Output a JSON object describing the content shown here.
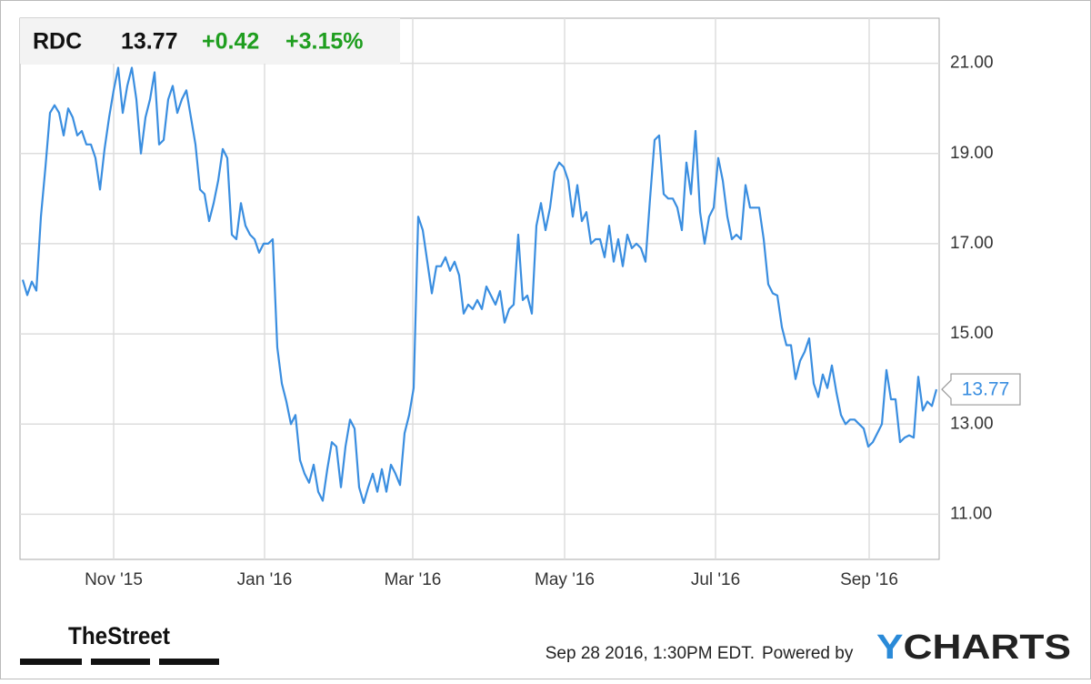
{
  "header": {
    "ticker": "RDC",
    "price": "13.77",
    "change": "+0.42",
    "change_pct": "+3.15%"
  },
  "footer": {
    "brand": "TheStreet",
    "timestamp": "Sep 28 2016, 1:30PM EDT.",
    "powered": "Powered by",
    "logo": "YCHARTS"
  },
  "chart_data": {
    "type": "line",
    "series": [
      {
        "name": "RDC",
        "color": "#3a8ee0",
        "values": [
          16.2,
          15.86,
          16.16,
          15.96,
          17.6,
          18.7,
          19.9,
          20.07,
          19.9,
          19.4,
          20.0,
          19.8,
          19.4,
          19.5,
          19.2,
          19.2,
          18.9,
          18.2,
          19.1,
          19.8,
          20.4,
          20.9,
          19.9,
          20.5,
          20.9,
          20.2,
          19.0,
          19.8,
          20.2,
          20.8,
          19.2,
          19.3,
          20.2,
          20.5,
          19.9,
          20.2,
          20.4,
          19.8,
          19.2,
          18.2,
          18.1,
          17.5,
          17.9,
          18.4,
          19.1,
          18.9,
          17.2,
          17.1,
          17.9,
          17.4,
          17.2,
          17.1,
          16.8,
          17.0,
          17.0,
          17.1,
          14.7,
          13.9,
          13.5,
          13.0,
          13.2,
          12.2,
          11.9,
          11.7,
          12.1,
          11.5,
          11.3,
          12.0,
          12.6,
          12.5,
          11.6,
          12.5,
          13.1,
          12.9,
          11.6,
          11.25,
          11.6,
          11.9,
          11.5,
          12.0,
          11.5,
          12.1,
          11.9,
          11.65,
          12.8,
          13.2,
          13.8,
          17.6,
          17.3,
          16.6,
          15.9,
          16.5,
          16.5,
          16.7,
          16.4,
          16.6,
          16.3,
          15.45,
          15.65,
          15.55,
          15.75,
          15.55,
          16.05,
          15.85,
          15.65,
          15.95,
          15.25,
          15.55,
          15.65,
          17.2,
          15.75,
          15.85,
          15.45,
          17.4,
          17.9,
          17.3,
          17.8,
          18.6,
          18.8,
          18.7,
          18.4,
          17.6,
          18.3,
          17.5,
          17.7,
          17.0,
          17.1,
          17.1,
          16.7,
          17.4,
          16.6,
          17.1,
          16.5,
          17.2,
          16.9,
          17.0,
          16.9,
          16.6,
          18.0,
          19.3,
          19.4,
          18.1,
          18.0,
          18.0,
          17.8,
          17.3,
          18.8,
          18.1,
          19.5,
          17.7,
          17.0,
          17.6,
          17.8,
          18.9,
          18.4,
          17.6,
          17.1,
          17.2,
          17.1,
          18.3,
          17.8,
          17.8,
          17.8,
          17.1,
          16.1,
          15.9,
          15.85,
          15.15,
          14.75,
          14.75,
          14.0,
          14.4,
          14.6,
          14.9,
          13.9,
          13.6,
          14.1,
          13.8,
          14.3,
          13.7,
          13.2,
          13.0,
          13.1,
          13.1,
          13.0,
          12.9,
          12.5,
          12.6,
          12.8,
          13.0,
          14.2,
          13.55,
          13.55,
          12.6,
          12.7,
          12.75,
          12.7,
          14.05,
          13.3,
          13.5,
          13.4,
          13.77
        ]
      }
    ],
    "xlim": [
      -0.6,
      201.6
    ],
    "xticks": [
      {
        "value": 20,
        "label": "Nov '15"
      },
      {
        "value": 53.2,
        "label": "Jan '16"
      },
      {
        "value": 85.8,
        "label": "Mar '16"
      },
      {
        "value": 119.2,
        "label": "May '16"
      },
      {
        "value": 152.4,
        "label": "Jul '16"
      },
      {
        "value": 186.2,
        "label": "Sep '16"
      }
    ],
    "ylim": [
      10,
      22
    ],
    "yticks": [
      {
        "value": 11,
        "label": "11.00"
      },
      {
        "value": 13,
        "label": "13.00"
      },
      {
        "value": 15,
        "label": "15.00"
      },
      {
        "value": 17,
        "label": "17.00"
      },
      {
        "value": 19,
        "label": "19.00"
      },
      {
        "value": 21,
        "label": "21.00"
      }
    ],
    "grid": true
  }
}
